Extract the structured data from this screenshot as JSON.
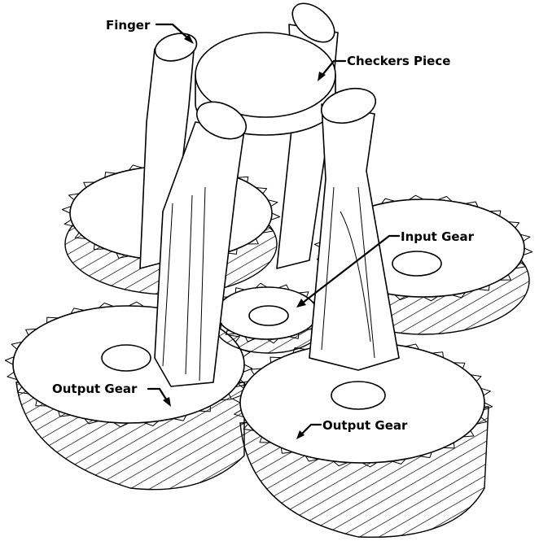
{
  "labels": {
    "finger": "Finger",
    "checkers_piece": "Checkers Piece",
    "input_gear": "Input Gear",
    "output_gear_left": "Output Gear",
    "output_gear_right": "Output Gear"
  }
}
